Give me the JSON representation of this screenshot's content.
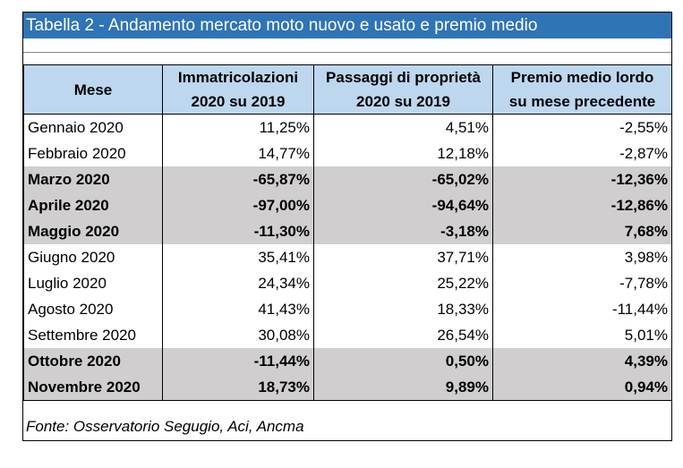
{
  "title": "Tabella 2 - Andamento mercato moto nuovo e usato e premio medio",
  "headers": {
    "mese": "Mese",
    "immatricolazioni_l1": "Immatricolazioni",
    "immatricolazioni_l2": "2020 su 2019",
    "passaggi_l1": "Passaggi di proprietà",
    "passaggi_l2": "2020 su 2019",
    "premio_l1": "Premio medio lordo",
    "premio_l2": "su mese precedente"
  },
  "rows": [
    {
      "mese": "Gennaio 2020",
      "imm": "11,25%",
      "pass": "4,51%",
      "premio": "-2,55%"
    },
    {
      "mese": "Febbraio 2020",
      "imm": "14,77%",
      "pass": "12,18%",
      "premio": "-2,87%"
    },
    {
      "mese": "Marzo 2020",
      "imm": "-65,87%",
      "pass": "-65,02%",
      "premio": "-12,36%"
    },
    {
      "mese": "Aprile 2020",
      "imm": "-97,00%",
      "pass": "-94,64%",
      "premio": "-12,86%"
    },
    {
      "mese": "Maggio 2020",
      "imm": "-11,30%",
      "pass": "-3,18%",
      "premio": "7,68%"
    },
    {
      "mese": "Giugno 2020",
      "imm": "35,41%",
      "pass": "37,71%",
      "premio": "3,98%"
    },
    {
      "mese": "Luglio 2020",
      "imm": "24,34%",
      "pass": "25,22%",
      "premio": "-7,78%"
    },
    {
      "mese": "Agosto 2020",
      "imm": "41,43%",
      "pass": "18,33%",
      "premio": "-11,44%"
    },
    {
      "mese": "Settembre 2020",
      "imm": "30,08%",
      "pass": "26,54%",
      "premio": "5,01%"
    },
    {
      "mese": "Ottobre 2020",
      "imm": "-11,44%",
      "pass": "0,50%",
      "premio": "4,39%"
    },
    {
      "mese": "Novembre 2020",
      "imm": "18,73%",
      "pass": "9,89%",
      "premio": "0,94%"
    }
  ],
  "source": "Fonte: Osservatorio Segugio, Aci, Ancma",
  "colors": {
    "title_bg": "#2f74b5",
    "header_bg": "#bdd7ee",
    "highlight_bg": "#d0cece"
  }
}
